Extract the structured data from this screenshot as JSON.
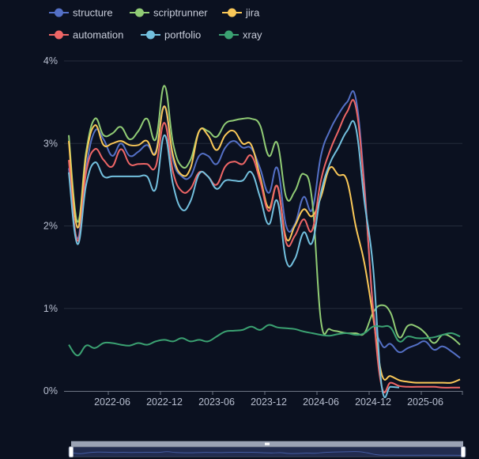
{
  "chart_data": {
    "type": "line",
    "smooth": true,
    "title": "",
    "xlabel": "",
    "ylabel": "",
    "ylim": [
      0,
      4
    ],
    "y_ticks": [
      "0%",
      "1%",
      "2%",
      "3%",
      "4%"
    ],
    "x_ticks": [
      "2022-06",
      "2022-12",
      "2023-06",
      "2023-12",
      "2024-06",
      "2024-12",
      "2025-06"
    ],
    "grid": "horizontal",
    "legend_position": "top-left",
    "background": "#0b1120",
    "x": [
      "2022-01",
      "2022-02",
      "2022-03",
      "2022-04",
      "2022-05",
      "2022-06",
      "2022-07",
      "2022-08",
      "2022-09",
      "2022-10",
      "2022-11",
      "2022-12",
      "2023-01",
      "2023-02",
      "2023-03",
      "2023-04",
      "2023-05",
      "2023-06",
      "2023-07",
      "2023-08",
      "2023-09",
      "2023-10",
      "2023-11",
      "2023-12",
      "2024-01",
      "2024-02",
      "2024-03",
      "2024-04",
      "2024-05",
      "2024-06",
      "2024-07",
      "2024-08",
      "2024-09",
      "2024-10",
      "2024-11",
      "2024-12",
      "2025-01",
      "2025-02",
      "2025-03",
      "2025-04",
      "2025-05",
      "2025-06",
      "2025-07",
      "2025-08",
      "2025-09",
      "2025-10"
    ],
    "series": [
      {
        "name": "structure",
        "color": "#5470c6",
        "values": [
          2.7,
          1.85,
          2.7,
          3.15,
          3.05,
          2.85,
          3.0,
          2.85,
          2.9,
          2.98,
          2.9,
          3.45,
          2.8,
          2.6,
          2.6,
          2.85,
          2.85,
          2.75,
          2.95,
          3.03,
          2.95,
          2.94,
          2.7,
          2.4,
          2.7,
          2.0,
          2.02,
          2.35,
          2.2,
          2.85,
          3.15,
          3.35,
          3.5,
          3.55,
          2.5,
          1.0,
          0.56,
          0.57,
          0.47,
          0.52,
          0.56,
          0.6,
          0.5,
          0.54,
          0.48,
          0.4
        ]
      },
      {
        "name": "scriptrunner",
        "color": "#91cc75",
        "values": [
          3.1,
          2.05,
          2.9,
          3.3,
          3.1,
          3.12,
          3.2,
          3.05,
          3.15,
          3.3,
          3.05,
          3.7,
          3.0,
          2.72,
          2.8,
          3.15,
          3.15,
          3.08,
          3.24,
          3.28,
          3.3,
          3.3,
          3.22,
          2.85,
          3.0,
          2.35,
          2.42,
          2.63,
          2.3,
          0.85,
          0.75,
          0.72,
          0.7,
          0.7,
          0.7,
          0.95,
          1.04,
          0.95,
          0.65,
          0.79,
          0.78,
          0.7,
          0.58,
          0.68,
          0.65,
          0.56
        ]
      },
      {
        "name": "jira",
        "color": "#fac858",
        "values": [
          3.03,
          1.98,
          2.85,
          3.22,
          2.98,
          3.0,
          3.03,
          2.98,
          2.98,
          3.03,
          2.88,
          3.45,
          2.85,
          2.62,
          2.7,
          3.15,
          3.1,
          2.92,
          3.1,
          3.15,
          3.0,
          2.98,
          2.6,
          2.22,
          2.48,
          1.85,
          2.0,
          2.2,
          2.12,
          2.35,
          2.7,
          2.62,
          2.55,
          2.0,
          1.55,
          0.9,
          0.2,
          0.18,
          0.13,
          0.11,
          0.1,
          0.1,
          0.1,
          0.1,
          0.1,
          0.14
        ]
      },
      {
        "name": "automation",
        "color": "#ee6666",
        "values": [
          2.8,
          1.82,
          2.65,
          2.93,
          2.8,
          2.72,
          2.93,
          2.75,
          2.75,
          2.75,
          2.72,
          3.25,
          2.65,
          2.42,
          2.45,
          2.65,
          2.6,
          2.5,
          2.72,
          2.78,
          2.75,
          2.85,
          2.55,
          2.18,
          2.48,
          1.8,
          1.88,
          2.08,
          1.95,
          2.55,
          2.9,
          3.15,
          3.38,
          3.45,
          2.45,
          1.0,
          0.05,
          0.1,
          0.06,
          0.05,
          0.05,
          0.05,
          0.05,
          0.04,
          0.04,
          0.04
        ]
      },
      {
        "name": "portfolio",
        "color": "#73c0de",
        "values": [
          2.65,
          1.78,
          2.5,
          2.77,
          2.6,
          2.6,
          2.6,
          2.6,
          2.6,
          2.6,
          2.45,
          3.1,
          2.5,
          2.2,
          2.3,
          2.63,
          2.6,
          2.45,
          2.55,
          2.55,
          2.55,
          2.65,
          2.35,
          2.02,
          2.3,
          1.58,
          1.6,
          1.92,
          1.8,
          2.4,
          2.75,
          2.95,
          3.15,
          3.2,
          2.3,
          1.5,
          0.05,
          0.05,
          0.04,
          null,
          null,
          null,
          null,
          null,
          null,
          null
        ]
      },
      {
        "name": "xray",
        "color": "#3ba272",
        "values": [
          0.56,
          0.43,
          0.55,
          0.52,
          0.58,
          0.58,
          0.56,
          0.55,
          0.58,
          0.56,
          0.6,
          0.62,
          0.6,
          0.64,
          0.6,
          0.62,
          0.6,
          0.66,
          0.72,
          0.73,
          0.74,
          0.78,
          0.74,
          0.8,
          0.77,
          0.76,
          0.75,
          0.72,
          0.7,
          0.68,
          0.67,
          0.69,
          0.7,
          0.68,
          0.7,
          0.78,
          0.78,
          0.77,
          0.6,
          0.66,
          0.64,
          0.64,
          0.65,
          0.68,
          0.7,
          0.66
        ]
      }
    ]
  },
  "data_zoom": {
    "start_percent": 0,
    "end_percent": 100
  }
}
